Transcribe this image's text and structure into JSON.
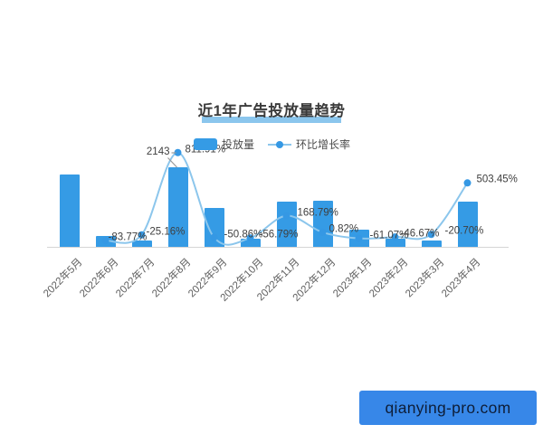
{
  "title": "近1年广告投放量趋势",
  "legend": {
    "bar_label": "投放量",
    "line_label": "环比增长率"
  },
  "watermark": {
    "label": "qianying-pro.com"
  },
  "colors": {
    "bar": "#359be5",
    "line": "#8cc6ec",
    "dot": "#3598e4",
    "title_text": "#3a3a3a",
    "title_underline": "#85c3ec",
    "value_label_text": "#3f3f3f",
    "x_axis_text": "#606060",
    "axis_line": "#d5d5d5",
    "legend_text": "#4a4a4a",
    "watermark_bg": "#3787e8",
    "watermark_text": "#0e1e38"
  },
  "chart_data": {
    "type": "bar",
    "subtype": "bar-line-combo",
    "title": "近1年广告投放量趋势",
    "legend": [
      "投放量",
      "环比增长率"
    ],
    "legend_position": "top-center",
    "grid": false,
    "y_axis_visible": false,
    "categories": [
      "2022年5月",
      "2022年6月",
      "2022年7月",
      "2022年8月",
      "2022年9月",
      "2022年10月",
      "2022年11月",
      "2022年12月",
      "2023年1月",
      "2023年2月",
      "2023年3月",
      "2023年4月"
    ],
    "series": [
      {
        "name": "投放量",
        "type": "bar",
        "values": [
          1950,
          290,
          170,
          2143,
          1050,
          220,
          1220,
          1240,
          460,
          220,
          170,
          1220
        ],
        "shown_value_labels": [
          null,
          null,
          null,
          "2143",
          null,
          null,
          null,
          null,
          null,
          null,
          null,
          null
        ]
      },
      {
        "name": "环比增长率",
        "type": "line",
        "unit": "%",
        "values": [
          null,
          -83.77,
          -25.16,
          811.91,
          -50.86,
          -56.79,
          168.79,
          0.82,
          -61.07,
          -46.67,
          -20.7,
          503.45
        ],
        "shown_value_labels": [
          null,
          "-83.77%",
          "-25.16%",
          "811.91%",
          "-50.86%",
          "-56.79%",
          "168.79%",
          "0.82%",
          "-61.07%",
          "-46.67%",
          "-20.70%",
          "503.45%"
        ]
      }
    ]
  }
}
